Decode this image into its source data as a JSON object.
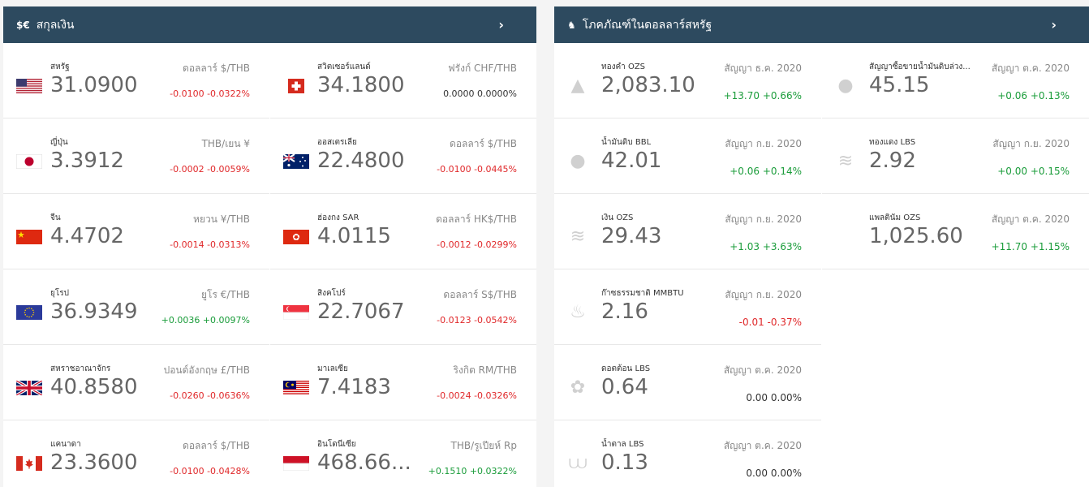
{
  "currency_panel": {
    "icon": "$€",
    "title": "สกุลเงิน",
    "chevron": "›",
    "items": [
      {
        "name": "สหรัฐ",
        "value": "31.0900",
        "unit": "ดอลลาร์ $/THB",
        "change": "-0.0100 -0.0322%",
        "trend": "neg",
        "flag": "us-flag-icon"
      },
      {
        "name": "ญี่ปุ่น",
        "value": "3.3912",
        "unit": "THB/เยน ¥",
        "change": "-0.0002 -0.0059%",
        "trend": "neg",
        "flag": "japan-flag-icon"
      },
      {
        "name": "จีน",
        "value": "4.4702",
        "unit": "หยวน ¥/THB",
        "change": "-0.0014 -0.0313%",
        "trend": "neg",
        "flag": "china-flag-icon"
      },
      {
        "name": "ยุโรป",
        "value": "36.9349",
        "unit": "ยูโร €/THB",
        "change": "+0.0036 +0.0097%",
        "trend": "pos",
        "flag": "eu-flag-icon"
      },
      {
        "name": "สหราชอาณาจักร",
        "value": "40.8580",
        "unit": "ปอนด์อังกฤษ £/THB",
        "change": "-0.0260 -0.0636%",
        "trend": "neg",
        "flag": "uk-flag-icon"
      },
      {
        "name": "แคนาดา",
        "value": "23.3600",
        "unit": "ดอลลาร์ $/THB",
        "change": "-0.0100 -0.0428%",
        "trend": "neg",
        "flag": "canada-flag-icon"
      },
      {
        "name": "สวิตเซอร์แลนด์",
        "value": "34.1800",
        "unit": "ฟรังก์ CHF/THB",
        "change": "0.0000 0.0000%",
        "trend": "zero",
        "flag": "switzerland-flag-icon"
      },
      {
        "name": "ออสเตรเลีย",
        "value": "22.4800",
        "unit": "ดอลลาร์ $/THB",
        "change": "-0.0100 -0.0445%",
        "trend": "neg",
        "flag": "australia-flag-icon"
      },
      {
        "name": "ฮ่องกง SAR",
        "value": "4.0115",
        "unit": "ดอลลาร์ HK$/THB",
        "change": "-0.0012 -0.0299%",
        "trend": "neg",
        "flag": "hongkong-flag-icon"
      },
      {
        "name": "สิงคโปร์",
        "value": "22.7067",
        "unit": "ดอลลาร์ S$/THB",
        "change": "-0.0123 -0.0542%",
        "trend": "neg",
        "flag": "singapore-flag-icon"
      },
      {
        "name": "มาเลเซีย",
        "value": "7.4183",
        "unit": "ริงกิต RM/THB",
        "change": "-0.0024 -0.0326%",
        "trend": "neg",
        "flag": "malaysia-flag-icon"
      },
      {
        "name": "อินโดนีเซีย",
        "value": "468.66...",
        "unit": "THB/รูเปียห์ Rp",
        "change": "+0.1510 +0.0322%",
        "trend": "pos",
        "flag": "indonesia-flag-icon"
      }
    ]
  },
  "commodity_panel": {
    "icon": "♞",
    "title": "โภคภัณฑ์ในดอลลาร์สหรัฐ",
    "chevron": "›",
    "items": [
      {
        "name": "ทองคำ OZS",
        "value": "2,083.10",
        "unit": "สัญญา ธ.ค. 2020",
        "change": "+13.70 +0.66%",
        "trend": "pos",
        "icon": "gold-bars-icon",
        "glyph": "▲"
      },
      {
        "name": "น้ำมันดิบ BBL",
        "value": "42.01",
        "unit": "สัญญา ก.ย. 2020",
        "change": "+0.06 +0.14%",
        "trend": "pos",
        "icon": "oil-drop-icon",
        "glyph": "●"
      },
      {
        "name": "เงิน OZS",
        "value": "29.43",
        "unit": "สัญญา ก.ย. 2020",
        "change": "+1.03 +3.63%",
        "trend": "pos",
        "icon": "coin-stack-icon",
        "glyph": "≋"
      },
      {
        "name": "ก๊าซธรรมชาติ MMBTU",
        "value": "2.16",
        "unit": "สัญญา ก.ย. 2020",
        "change": "-0.01 -0.37%",
        "trend": "neg",
        "icon": "flame-icon",
        "glyph": "♨"
      },
      {
        "name": "ดอตต้อน LBS",
        "value": "0.64",
        "unit": "สัญญา ต.ค. 2020",
        "change": "0.00 0.00%",
        "trend": "zero",
        "icon": "cotton-icon",
        "glyph": "✿"
      },
      {
        "name": "น้ำตาล LBS",
        "value": "0.13",
        "unit": "สัญญา ต.ค. 2020",
        "change": "0.00 0.00%",
        "trend": "zero",
        "icon": "sugar-icon",
        "glyph": "⩊"
      },
      {
        "name": "สัญญาซื้อขายน้ำมันดิบล่วง...",
        "value": "45.15",
        "unit": "สัญญา ต.ค. 2020",
        "change": "+0.06 +0.13%",
        "trend": "pos",
        "icon": "oil-drop-icon",
        "glyph": "●"
      },
      {
        "name": "ทองแดง LBS",
        "value": "2.92",
        "unit": "สัญญา ก.ย. 2020",
        "change": "+0.00 +0.15%",
        "trend": "pos",
        "icon": "coin-stack-icon",
        "glyph": "≋"
      },
      {
        "name": "แพลตินัม OZS",
        "value": "1,025.60",
        "unit": "สัญญา ต.ค. 2020",
        "change": "+11.70 +1.15%",
        "trend": "pos",
        "icon": "",
        "glyph": ""
      }
    ]
  }
}
